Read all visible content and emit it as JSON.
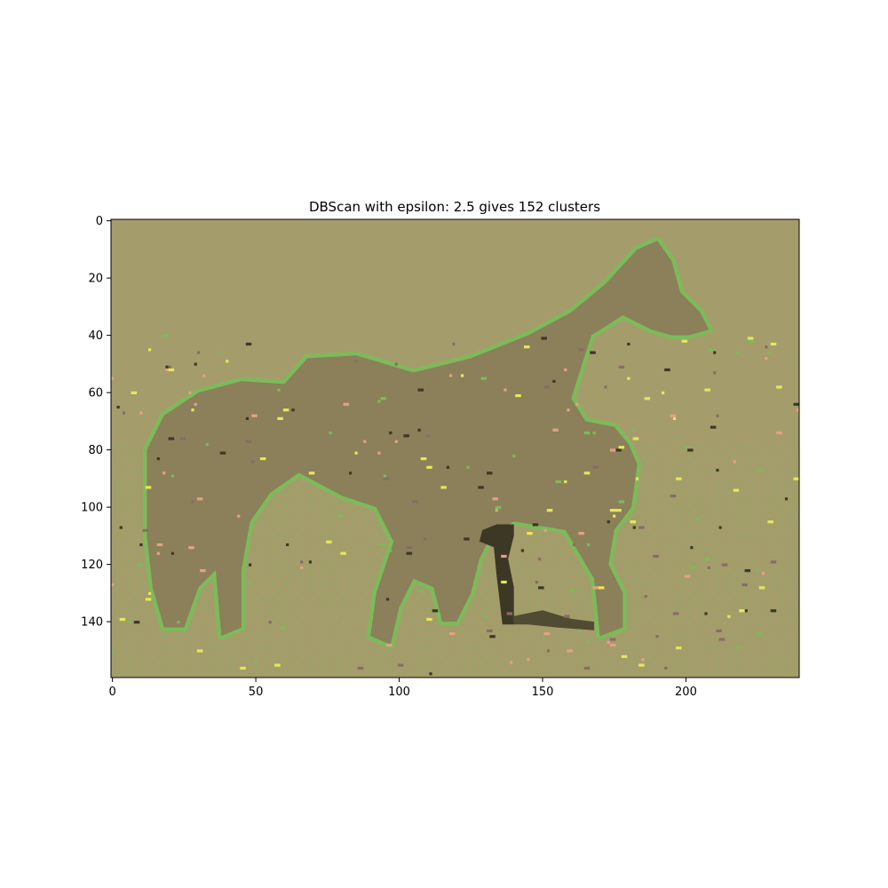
{
  "chart_data": {
    "type": "heatmap",
    "title": "DBScan with epsilon: 2.5 gives 152 clusters",
    "xlabel": "",
    "ylabel": "",
    "xlim": [
      -0.5,
      239.5
    ],
    "ylim": [
      159.5,
      -0.5
    ],
    "y_axis_inverted": true,
    "x_ticks": [
      0,
      50,
      100,
      150,
      200
    ],
    "y_ticks": [
      0,
      20,
      40,
      60,
      80,
      100,
      120,
      140
    ],
    "image_size": {
      "width": 240,
      "height": 160
    },
    "grid": false,
    "legend": "none",
    "cluster_colors": {
      "background": "#a59c6b",
      "horse_body": "#8b805a",
      "outline": "#7dba5a",
      "dark_detail": "#3d3726",
      "pink_noise": "#e8a083",
      "yellow_noise": "#e6e85a",
      "mauve_patch": "#8a6b66"
    },
    "regions": {
      "horse": [
        [
          60,
          57
        ],
        [
          68,
          48
        ],
        [
          85,
          47
        ],
        [
          105,
          53
        ],
        [
          125,
          48
        ],
        [
          145,
          40
        ],
        [
          160,
          32
        ],
        [
          172,
          22
        ],
        [
          183,
          10
        ],
        [
          190,
          7
        ],
        [
          195,
          14
        ],
        [
          198,
          25
        ],
        [
          205,
          32
        ],
        [
          208,
          38
        ],
        [
          201,
          40
        ],
        [
          195,
          40
        ],
        [
          188,
          38
        ],
        [
          178,
          33
        ],
        [
          167,
          40
        ],
        [
          160,
          62
        ],
        [
          165,
          70
        ],
        [
          175,
          72
        ],
        [
          180,
          78
        ],
        [
          183,
          85
        ],
        [
          181,
          100
        ],
        [
          175,
          108
        ],
        [
          173,
          120
        ],
        [
          178,
          130
        ],
        [
          178,
          142
        ],
        [
          170,
          145
        ],
        [
          168,
          125
        ],
        [
          158,
          108
        ],
        [
          140,
          105
        ],
        [
          132,
          110
        ],
        [
          128,
          118
        ],
        [
          125,
          130
        ],
        [
          120,
          140
        ],
        [
          115,
          140
        ],
        [
          112,
          128
        ],
        [
          105,
          125
        ],
        [
          100,
          135
        ],
        [
          97,
          148
        ],
        [
          90,
          145
        ],
        [
          92,
          130
        ],
        [
          98,
          112
        ],
        [
          92,
          100
        ],
        [
          80,
          96
        ],
        [
          65,
          88
        ],
        [
          55,
          95
        ],
        [
          48,
          105
        ],
        [
          45,
          122
        ],
        [
          45,
          142
        ],
        [
          38,
          145
        ],
        [
          36,
          122
        ],
        [
          30,
          128
        ],
        [
          25,
          142
        ],
        [
          18,
          142
        ],
        [
          14,
          128
        ],
        [
          12,
          110
        ],
        [
          12,
          80
        ],
        [
          18,
          68
        ],
        [
          30,
          60
        ],
        [
          45,
          56
        ]
      ],
      "dark_leg": [
        [
          128,
          112
        ],
        [
          129,
          108
        ],
        [
          134,
          106
        ],
        [
          140,
          106
        ],
        [
          140,
          110
        ],
        [
          138,
          118
        ],
        [
          140,
          128
        ],
        [
          140,
          141
        ],
        [
          136,
          141
        ],
        [
          134,
          124
        ],
        [
          133,
          114
        ]
      ],
      "ground_strip": [
        [
          140,
          138
        ],
        [
          150,
          136
        ],
        [
          160,
          139
        ],
        [
          168,
          140
        ],
        [
          168,
          143
        ],
        [
          155,
          142
        ],
        [
          145,
          141
        ],
        [
          140,
          141
        ]
      ]
    }
  }
}
